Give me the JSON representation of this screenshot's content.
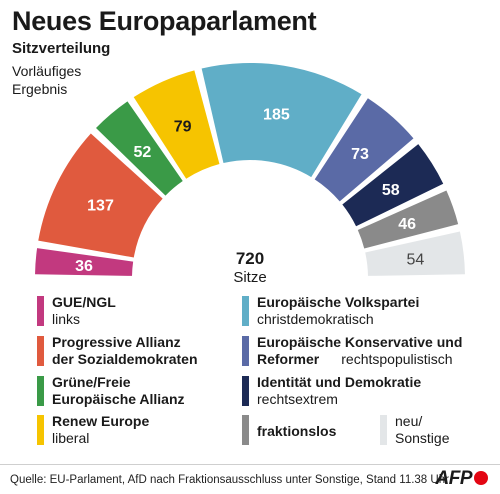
{
  "header": {
    "title": "Neues Europaparlament",
    "subtitle": "Sitzverteilung",
    "note": "Vorläufiges Ergebnis"
  },
  "chart_data": {
    "type": "pie",
    "shape": "semicircle",
    "total_value": "720",
    "total_label": "Sitze",
    "series": [
      {
        "value": 36,
        "color": "#c2397f"
      },
      {
        "value": 137,
        "color": "#e05a3e"
      },
      {
        "value": 52,
        "color": "#3a9a47"
      },
      {
        "value": 79,
        "color": "#f6c400"
      },
      {
        "value": 185,
        "color": "#60aec7"
      },
      {
        "value": 73,
        "color": "#5a6aa6"
      },
      {
        "value": 58,
        "color": "#1c2a55"
      },
      {
        "value": 46,
        "color": "#8a8a8a"
      },
      {
        "value": 54,
        "color": "#e3e6e8"
      }
    ]
  },
  "legend": [
    {
      "name": "GUE/NGL",
      "desc": "links",
      "color": "#c2397f"
    },
    {
      "name": "Progressive Allianz der Sozialdemokraten",
      "name_lines": [
        "Progressive Allianz",
        "der Sozialdemokraten"
      ],
      "desc": "",
      "color": "#e05a3e"
    },
    {
      "name": "Grüne/Freie Europäische Allianz",
      "name_lines": [
        "Grüne/Freie",
        "Europäische Allianz"
      ],
      "desc": "",
      "color": "#3a9a47"
    },
    {
      "name": "Renew Europe",
      "desc": "liberal",
      "color": "#f6c400"
    },
    {
      "name": "Europäische Volkspartei",
      "desc": "christdemokratisch",
      "color": "#60aec7"
    },
    {
      "name": "Europäische Konservative und Reformer",
      "name_lines": [
        "Europäische Konservative und",
        "Reformer"
      ],
      "desc": "rechtspopulistisch",
      "color": "#5a6aa6"
    },
    {
      "name": "Identität und Demokratie",
      "desc": "rechtsextrem",
      "color": "#1c2a55"
    },
    {
      "name": "fraktionslos",
      "desc": "",
      "color": "#8a8a8a"
    },
    {
      "name": "",
      "desc": "neu/ Sonstige",
      "desc_lines": [
        "neu/",
        "Sonstige"
      ],
      "color": "#e3e6e8"
    }
  ],
  "footer": {
    "source": "Quelle: EU-Parlament, AfD nach Fraktionsausschluss unter Sonstige, Stand 11.38 Uhr",
    "logo": "AFP"
  }
}
